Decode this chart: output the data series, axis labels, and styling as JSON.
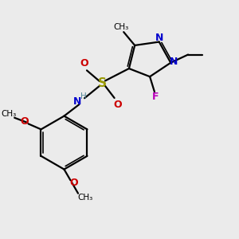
{
  "bg_color": "#ebebeb",
  "bond_color": "#000000",
  "N_color": "#0000cc",
  "O_color": "#cc0000",
  "F_color": "#bb00bb",
  "S_color": "#999900",
  "H_color": "#558899",
  "figsize": [
    3.0,
    3.0
  ],
  "dpi": 100,
  "xlim": [
    0,
    10
  ],
  "ylim": [
    0,
    10
  ]
}
